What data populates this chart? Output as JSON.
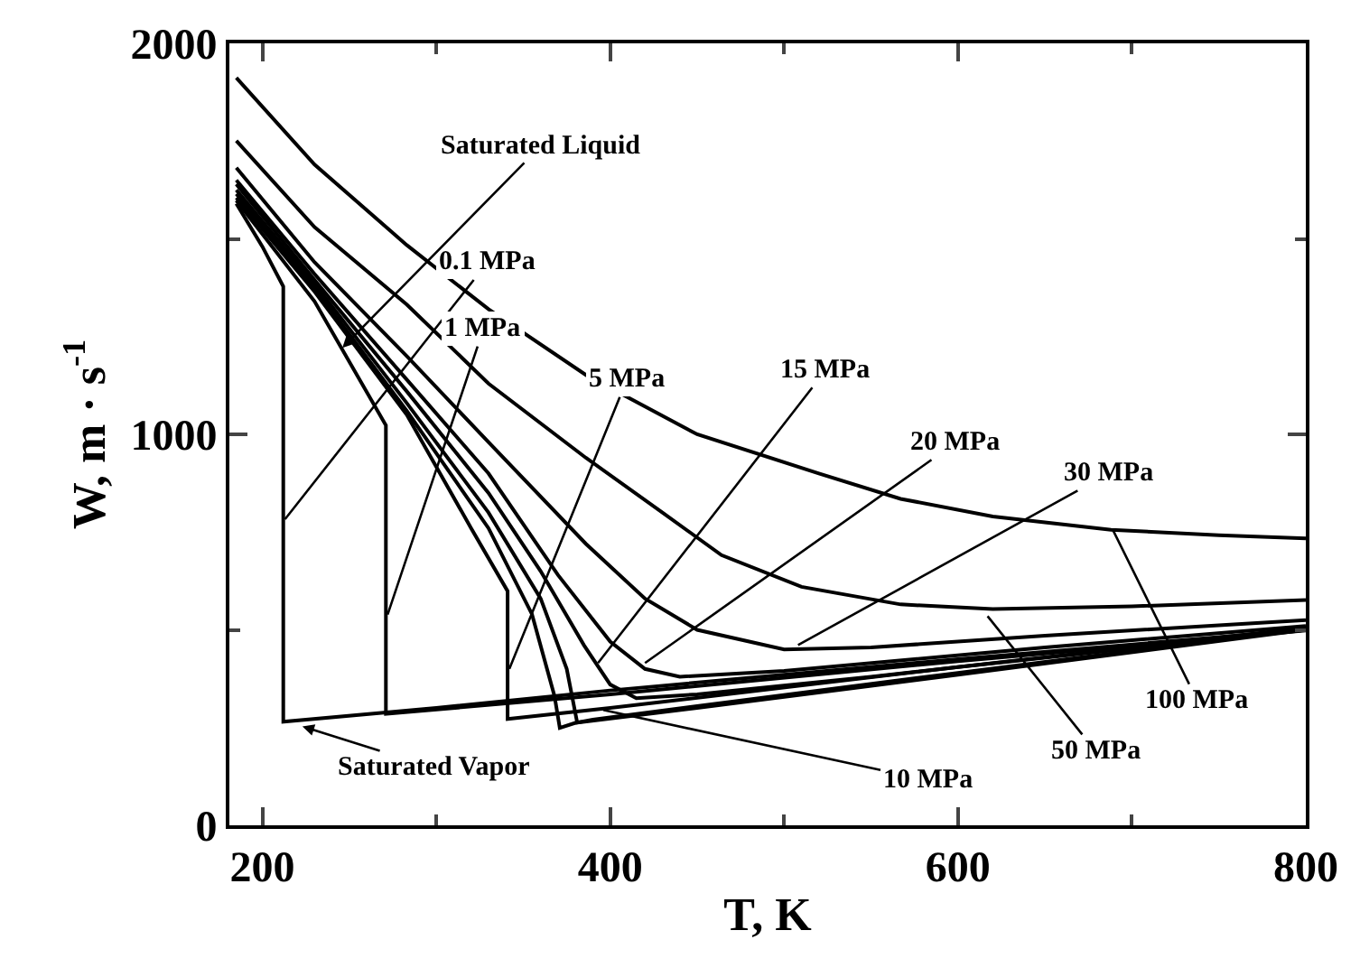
{
  "chart_data": {
    "type": "line",
    "xlabel": "T, K",
    "ylabel": "W, m · s$^{-1}$",
    "xlim": [
      181,
      800
    ],
    "ylim": [
      0,
      2000
    ],
    "xticks": [
      200,
      {
        "value": 300,
        "label": null
      },
      400,
      {
        "value": 500,
        "label": null
      },
      600,
      {
        "value": 700,
        "label": null
      },
      800
    ],
    "yticks": [
      0,
      {
        "value": 500,
        "label": null
      },
      1000,
      {
        "value": 1500,
        "label": null
      },
      2000
    ],
    "legend": false,
    "marker": "none",
    "line_style": "solid",
    "series": [
      {
        "color": "#000000",
        "x": [
          185,
          200,
          212,
          212,
          300,
          400,
          600,
          800
        ],
        "values": [
          1590,
          1480,
          1378,
          265,
          300,
          345,
          425,
          500
        ]
      },
      {
        "color": "#000000",
        "x": [
          185,
          230,
          271,
          271,
          400,
          600,
          800
        ],
        "values": [
          1598,
          1340,
          1023,
          285,
          335,
          420,
          498
        ]
      },
      {
        "color": "#000000",
        "x": [
          185,
          230,
          283,
          320,
          341,
          341,
          400,
          600,
          800
        ],
        "values": [
          1605,
          1365,
          1050,
          760,
          599,
          272,
          300,
          405,
          500
        ]
      },
      {
        "color": "#000000",
        "x": [
          185,
          230,
          283,
          330,
          355,
          368,
          371,
          380,
          450,
          600,
          800
        ],
        "values": [
          1615,
          1375,
          1060,
          760,
          540,
          330,
          249,
          262,
          300,
          385,
          500
        ]
      },
      {
        "color": "#000000",
        "x": [
          185,
          230,
          283,
          330,
          360,
          375,
          381,
          390,
          450,
          600,
          800
        ],
        "values": [
          1625,
          1385,
          1080,
          800,
          580,
          400,
          263,
          270,
          305,
          390,
          502
        ]
      },
      {
        "color": "#000000",
        "x": [
          185,
          230,
          283,
          330,
          360,
          385,
          400,
          415,
          450,
          550,
          800
        ],
        "values": [
          1640,
          1395,
          1110,
          850,
          650,
          460,
          360,
          325,
          335,
          380,
          505
        ]
      },
      {
        "color": "#000000",
        "x": [
          185,
          230,
          283,
          330,
          370,
          400,
          420,
          440,
          500,
          650,
          800
        ],
        "values": [
          1650,
          1410,
          1140,
          900,
          640,
          470,
          400,
          380,
          395,
          455,
          510
        ]
      },
      {
        "color": "#000000",
        "x": [
          185,
          230,
          283,
          330,
          386,
          420,
          450,
          500,
          550,
          650,
          800
        ],
        "values": [
          1682,
          1440,
          1200,
          980,
          720,
          580,
          500,
          450,
          455,
          485,
          525
        ]
      },
      {
        "color": "#000000",
        "x": [
          185,
          230,
          283,
          330,
          386,
          430,
          464,
          510,
          567,
          620,
          700,
          800
        ],
        "values": [
          1751,
          1530,
          1332,
          1130,
          940,
          800,
          691,
          610,
          565,
          553,
          560,
          576
        ]
      },
      {
        "color": "#000000",
        "x": [
          185,
          230,
          283,
          330,
          386,
          450,
          520,
          567,
          620,
          688,
          750,
          800
        ],
        "values": [
          1912,
          1690,
          1484,
          1320,
          1152,
          1000,
          900,
          835,
          790,
          756,
          742,
          734
        ]
      }
    ],
    "annotations": [
      {
        "text": "0.1 MPa",
        "x": 213,
        "y": 783
      },
      {
        "text": "1 MPa",
        "x": 272,
        "y": 539
      },
      {
        "text": "5 MPa",
        "x": 342,
        "y": 400
      },
      {
        "text": "15 MPa",
        "x": 393,
        "y": 415
      },
      {
        "text": "20 MPa",
        "x": 420,
        "y": 415
      },
      {
        "text": "30 MPa",
        "x": 508,
        "y": 461
      },
      {
        "text": "50 MPa",
        "x": 617,
        "y": 535
      },
      {
        "text": "100 MPa",
        "x": 689,
        "y": 756
      },
      {
        "text": "10 MPa",
        "x": 396,
        "y": 295
      },
      {
        "text": "Saturated Liquid",
        "x": 246,
        "y": 1221
      },
      {
        "text": "Saturated Vapor",
        "x": 223,
        "y": 253
      }
    ]
  }
}
